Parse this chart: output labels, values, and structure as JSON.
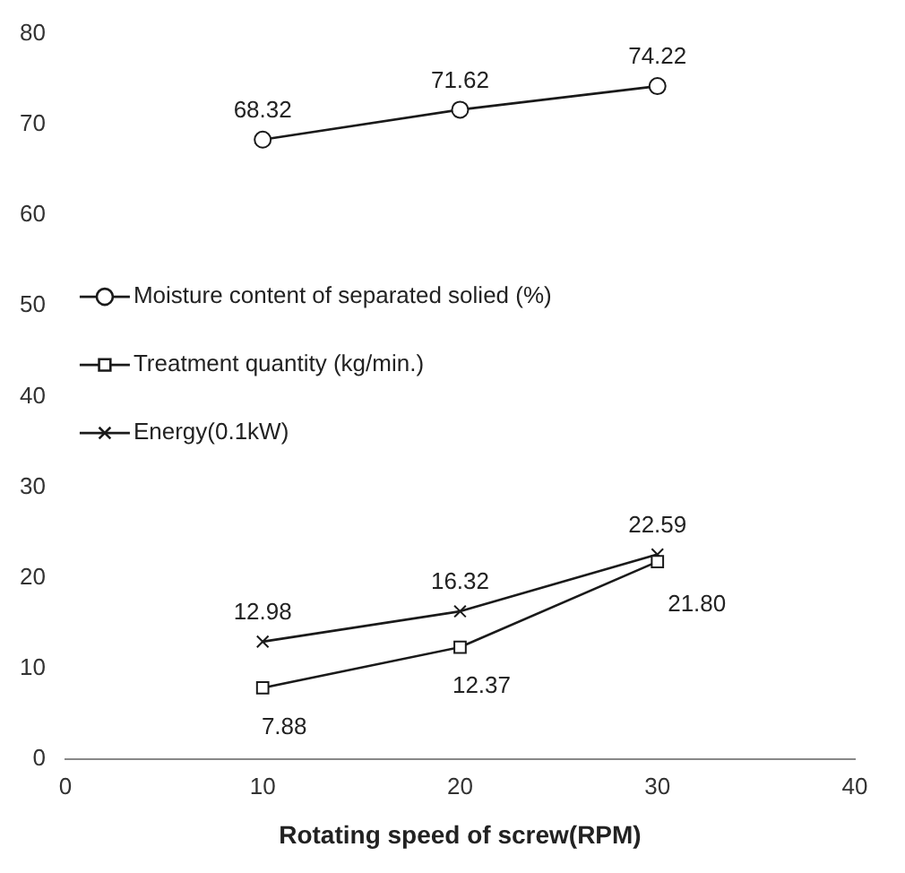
{
  "chart_data": {
    "type": "line",
    "xlabel": "Rotating speed of screw(RPM)",
    "x": [
      10,
      20,
      30
    ],
    "series": [
      {
        "name": "Moisture content of separated solied (%)",
        "color": "#1a1a1a",
        "marker": "circle",
        "values": [
          68.32,
          71.62,
          74.22
        ],
        "value_labels": [
          "68.32",
          "71.62",
          "74.22"
        ]
      },
      {
        "name": "Treatment quantity (kg/min.)",
        "color": "#1a1a1a",
        "marker": "square",
        "values": [
          7.88,
          12.37,
          21.8
        ],
        "value_labels": [
          "7.88",
          "12.37",
          "21.80"
        ]
      },
      {
        "name": "Energy(0.1kW)",
        "color": "#1a1a1a",
        "marker": "cross",
        "values": [
          12.98,
          16.32,
          22.59
        ],
        "value_labels": [
          "12.98",
          "16.32",
          "22.59"
        ]
      }
    ],
    "xlim": [
      0,
      40
    ],
    "xticks": [
      0,
      10,
      20,
      30,
      40
    ],
    "ylim": [
      0,
      80
    ],
    "yticks": [
      0,
      10,
      20,
      30,
      40,
      50,
      60,
      70,
      80
    ],
    "grid": false,
    "legend": "left"
  }
}
